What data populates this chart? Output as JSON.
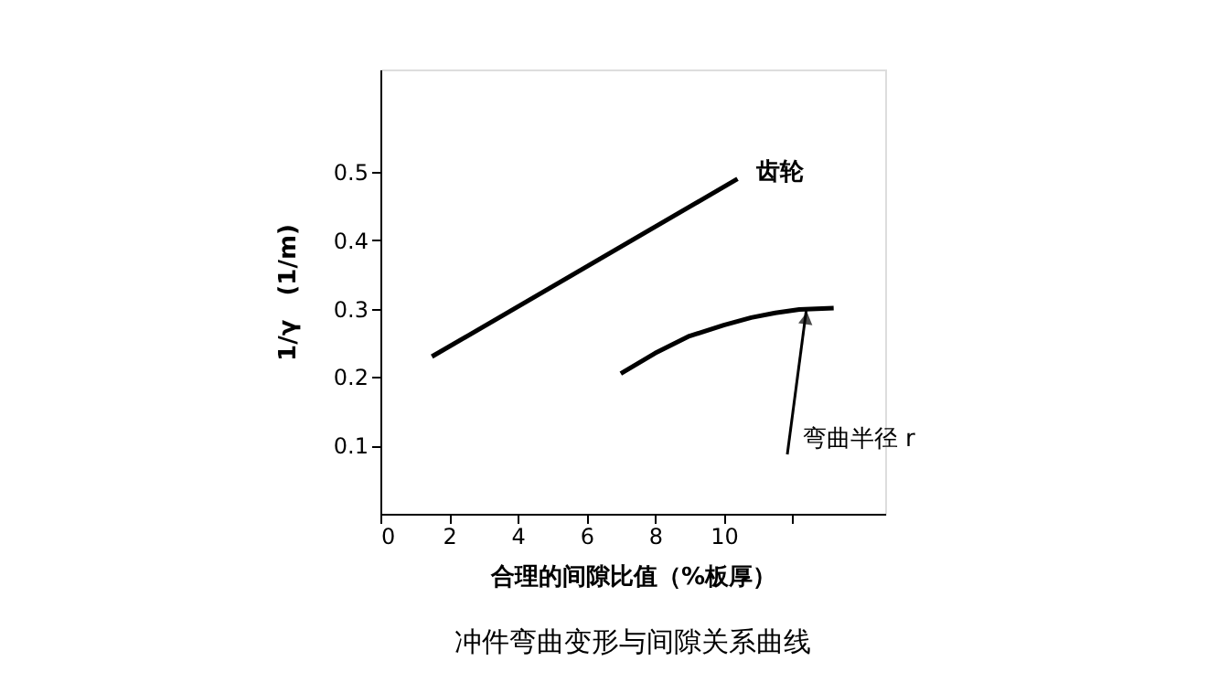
{
  "chart_data": {
    "type": "line",
    "title": "冲件弯曲变形与间隙关系曲线",
    "xlabel": "合理的间隙比值（%板厚）",
    "ylabel": "1/γ　(1/m)",
    "series": [
      {
        "name": "齿轮",
        "color": "#000000",
        "x": [
          1.5,
          10.4
        ],
        "values": [
          0.23,
          0.49
        ]
      },
      {
        "color": "#000000",
        "x": [
          7.0,
          8.0,
          9.0,
          10.0,
          10.8,
          11.5,
          12.2,
          13.2
        ],
        "values": [
          0.205,
          0.235,
          0.26,
          0.276,
          0.287,
          0.294,
          0.299,
          0.301
        ]
      }
    ],
    "annotations": [
      {
        "text": "弯曲半径 r",
        "x": 12.4,
        "y": 0.297
      }
    ],
    "xlim": [
      0,
      14.7
    ],
    "ylim": [
      0,
      0.65
    ],
    "xticks": [
      0,
      2,
      4,
      6,
      8,
      10,
      {
        "value": 12,
        "label": null
      }
    ],
    "yticks": [
      0.1,
      0.2,
      0.3,
      0.4,
      0.5
    ],
    "grid": false,
    "marker": "none",
    "line_style": "solid"
  }
}
